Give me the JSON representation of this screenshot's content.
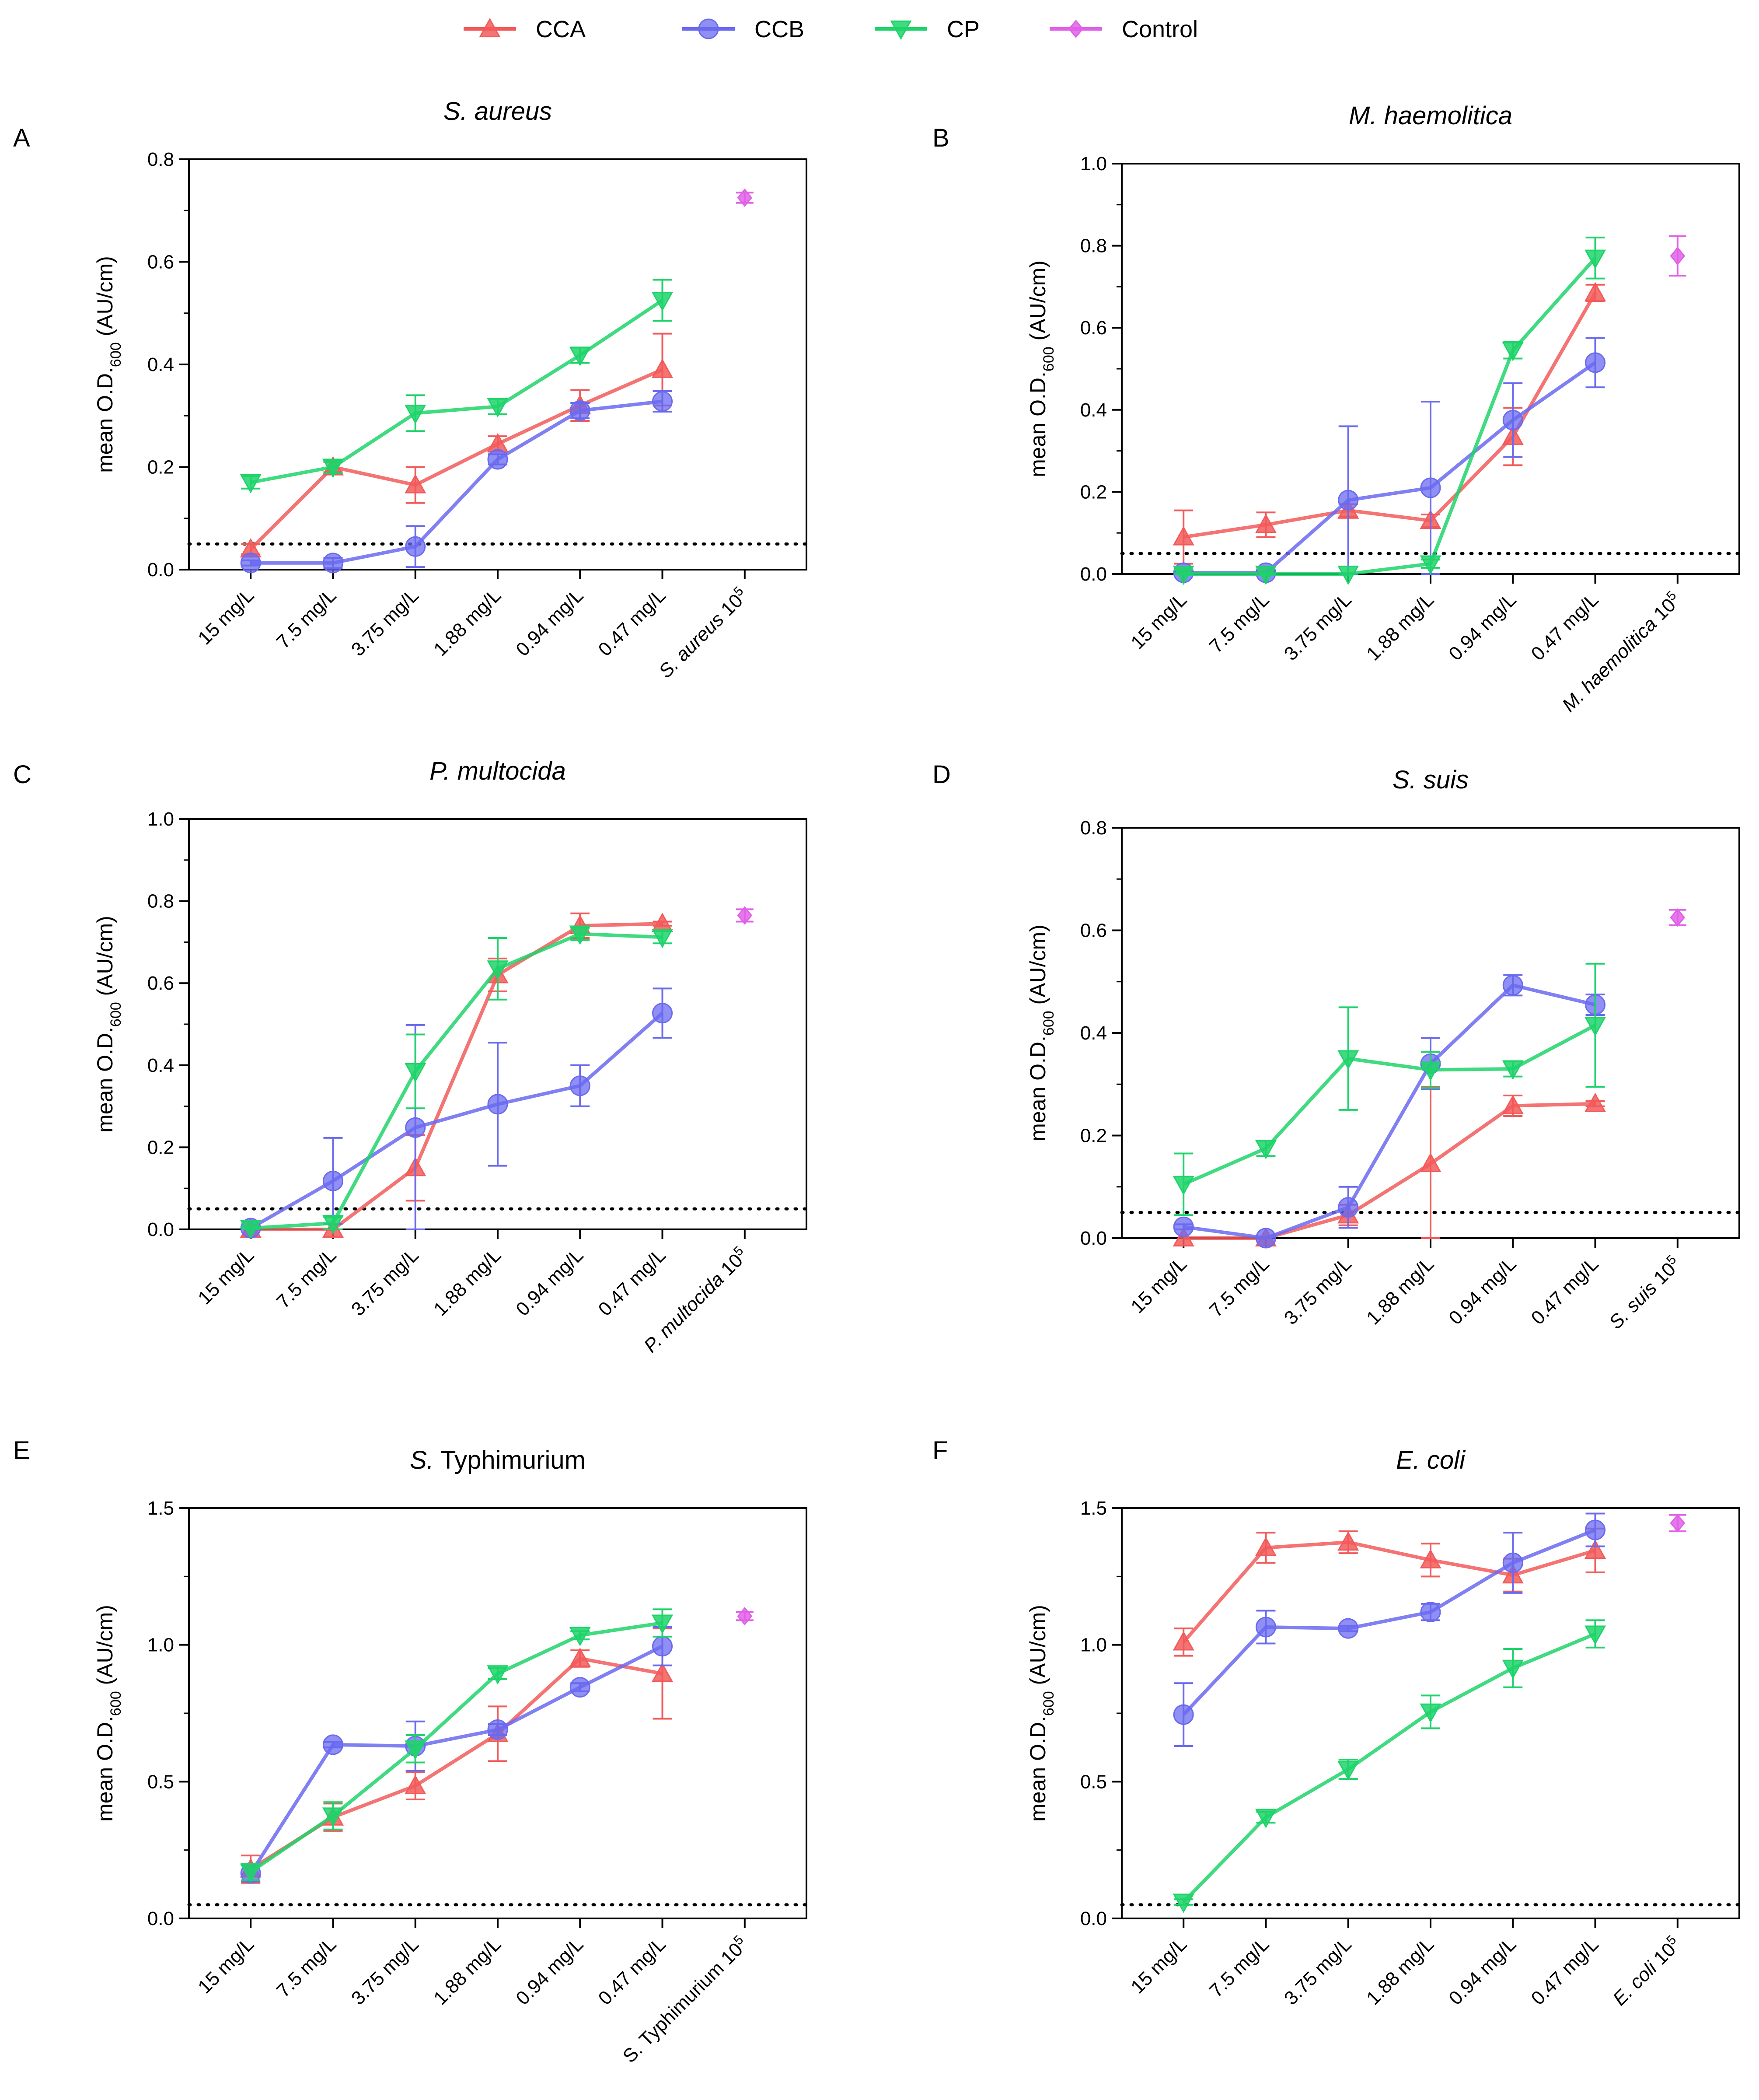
{
  "legend": {
    "placement": "top-center",
    "entries": [
      {
        "name": "CCA",
        "color": "#f25a5a",
        "marker": "triangle-up"
      },
      {
        "name": "CCB",
        "color": "#6a6af0",
        "marker": "circle"
      },
      {
        "name": "CP",
        "color": "#1ed36a",
        "marker": "triangle-down"
      },
      {
        "name": "Control",
        "color": "#e060e8",
        "marker": "diamond"
      }
    ]
  },
  "colors": {
    "CCA": "#f25a5a",
    "CCB": "#6a6af0",
    "CP": "#1ed36a",
    "Control": "#e060e8",
    "axis": "#000000"
  },
  "chart_data": [
    {
      "panel": "A",
      "title": "S. aureus",
      "type": "line",
      "ylabel": "mean O.D.600 (AU/cm)",
      "ylim": [
        0,
        0.8
      ],
      "yticks": [
        "0.0",
        "0.2",
        "0.4",
        "0.6",
        "0.8"
      ],
      "yticks_values": [
        0,
        0.2,
        0.4,
        0.6,
        0.8
      ],
      "threshold": 0.05,
      "categories": [
        "15 mg/L",
        "7.5 mg/L",
        "3.75 mg/L",
        "1.88 mg/L",
        "0.94 mg/L",
        "0.47 mg/L"
      ],
      "control_label": {
        "italic": "S. aureus",
        "plain": " 10",
        "sup": "5"
      },
      "series": [
        {
          "name": "CCA",
          "values": [
            0.04,
            0.2,
            0.165,
            0.245,
            0.32,
            0.39
          ],
          "errors": [
            0.01,
            0.01,
            0.035,
            0.015,
            0.03,
            0.07
          ]
        },
        {
          "name": "CCB",
          "values": [
            0.013,
            0.013,
            0.045,
            0.215,
            0.31,
            0.328
          ],
          "errors": [
            0.005,
            0.01,
            0.04,
            0.01,
            0.015,
            0.02
          ]
        },
        {
          "name": "CP",
          "values": [
            0.17,
            0.2,
            0.305,
            0.318,
            0.418,
            0.525
          ],
          "errors": [
            0.012,
            0.012,
            0.035,
            0.015,
            0.015,
            0.04
          ]
        }
      ],
      "control": {
        "value": 0.725,
        "error": 0.01
      }
    },
    {
      "panel": "B",
      "title": "M. haemolitica",
      "type": "line",
      "ylabel": "mean O.D.600 (AU/cm)",
      "ylim": [
        0,
        1.0
      ],
      "yticks": [
        "0.0",
        "0.2",
        "0.4",
        "0.6",
        "0.8",
        "1.0"
      ],
      "yticks_values": [
        0,
        0.2,
        0.4,
        0.6,
        0.8,
        1.0
      ],
      "threshold": 0.05,
      "categories": [
        "15 mg/L",
        "7.5 mg/L",
        "3.75 mg/L",
        "1.88 mg/L",
        "0.94 mg/L",
        "0.47 mg/L"
      ],
      "control_label": {
        "italic": "M. haemolitica",
        "plain": " 10",
        "sup": "5"
      },
      "series": [
        {
          "name": "CCA",
          "values": [
            0.09,
            0.12,
            0.155,
            0.13,
            0.335,
            0.685
          ],
          "errors": [
            0.065,
            0.03,
            0.015,
            0.015,
            0.07,
            0.02
          ]
        },
        {
          "name": "CCB",
          "values": [
            0.003,
            0.003,
            0.18,
            0.21,
            0.375,
            0.515
          ],
          "errors": [
            0.003,
            0.003,
            0.18,
            0.21,
            0.09,
            0.06
          ]
        },
        {
          "name": "CP",
          "values": [
            0.0,
            0.0,
            0.0,
            0.025,
            0.545,
            0.77
          ],
          "errors": [
            0.01,
            0.0,
            0.0,
            0.01,
            0.02,
            0.05
          ]
        }
      ],
      "control": {
        "value": 0.775,
        "error": 0.048
      }
    },
    {
      "panel": "C",
      "title": "P. multocida",
      "type": "line",
      "ylabel": "mean O.D.600 (AU/cm)",
      "ylim": [
        0,
        1.0
      ],
      "yticks": [
        "0.0",
        "0.2",
        "0.4",
        "0.6",
        "0.8",
        "1.0"
      ],
      "yticks_values": [
        0,
        0.2,
        0.4,
        0.6,
        0.8,
        1.0
      ],
      "threshold": 0.05,
      "categories": [
        "15 mg/L",
        "7.5 mg/L",
        "3.75 mg/L",
        "1.88 mg/L",
        "0.94 mg/L",
        "0.47 mg/L"
      ],
      "control_label": {
        "italic": "P. multocida",
        "plain": " 10",
        "sup": "5"
      },
      "series": [
        {
          "name": "CCA",
          "values": [
            0.0,
            0.0,
            0.15,
            0.62,
            0.74,
            0.745
          ],
          "errors": [
            0.0,
            0.0,
            0.08,
            0.04,
            0.03,
            0.005
          ]
        },
        {
          "name": "CCB",
          "values": [
            0.003,
            0.118,
            0.248,
            0.305,
            0.35,
            0.527
          ],
          "errors": [
            0.003,
            0.105,
            0.25,
            0.15,
            0.05,
            0.06
          ]
        },
        {
          "name": "CP",
          "values": [
            0.003,
            0.015,
            0.385,
            0.635,
            0.72,
            0.712
          ],
          "errors": [
            0.003,
            0.015,
            0.09,
            0.075,
            0.015,
            0.015
          ]
        }
      ],
      "control": {
        "value": 0.765,
        "error": 0.015
      }
    },
    {
      "panel": "D",
      "title": "S. suis",
      "type": "line",
      "ylabel": "mean O.D.600 (AU/cm)",
      "ylim": [
        0,
        0.8
      ],
      "yticks": [
        "0.0",
        "0.2",
        "0.4",
        "0.6",
        "0.8"
      ],
      "yticks_values": [
        0,
        0.2,
        0.4,
        0.6,
        0.8
      ],
      "threshold": 0.05,
      "categories": [
        "15 mg/L",
        "7.5 mg/L",
        "3.75 mg/L",
        "1.88 mg/L",
        "0.94 mg/L",
        "0.47 mg/L"
      ],
      "control_label": {
        "italic": "S. suis",
        "plain": " 10",
        "sup": "5"
      },
      "series": [
        {
          "name": "CCA",
          "values": [
            0.0,
            0.0,
            0.045,
            0.145,
            0.258,
            0.262
          ],
          "errors": [
            0.0,
            0.0,
            0.02,
            0.15,
            0.02,
            0.005
          ]
        },
        {
          "name": "CCB",
          "values": [
            0.022,
            0.0,
            0.06,
            0.34,
            0.493,
            0.455
          ],
          "errors": [
            0.005,
            0.0,
            0.04,
            0.05,
            0.02,
            0.02
          ]
        },
        {
          "name": "CP",
          "values": [
            0.105,
            0.175,
            0.35,
            0.328,
            0.33,
            0.415
          ],
          "errors": [
            0.06,
            0.015,
            0.1,
            0.035,
            0.015,
            0.12
          ]
        }
      ],
      "control": {
        "value": 0.625,
        "error": 0.015
      }
    },
    {
      "panel": "E",
      "title": "S. Typhimurium",
      "title_italic": "S.",
      "title_plain": " Typhimurium",
      "type": "line",
      "ylabel": "mean O.D.600 (AU/cm)",
      "ylim": [
        0,
        1.5
      ],
      "yticks": [
        "0.0",
        "0.5",
        "1.0",
        "1.5"
      ],
      "yticks_values": [
        0,
        0.5,
        1.0,
        1.5
      ],
      "threshold": 0.05,
      "categories": [
        "15 mg/L",
        "7.5 mg/L",
        "3.75 mg/L",
        "1.88 mg/L",
        "0.94 mg/L",
        "0.47 mg/L"
      ],
      "control_label": {
        "italic": "",
        "plain": "S. Typhimurium 10",
        "sup": "5"
      },
      "series": [
        {
          "name": "CCA",
          "values": [
            0.18,
            0.37,
            0.485,
            0.675,
            0.95,
            0.895
          ],
          "errors": [
            0.05,
            0.05,
            0.05,
            0.1,
            0.03,
            0.165
          ]
        },
        {
          "name": "CCB",
          "values": [
            0.165,
            0.635,
            0.63,
            0.69,
            0.845,
            0.995
          ],
          "errors": [
            0.03,
            0.01,
            0.09,
            0.02,
            0.015,
            0.07
          ]
        },
        {
          "name": "CP",
          "values": [
            0.17,
            0.375,
            0.62,
            0.895,
            1.035,
            1.08
          ],
          "errors": [
            0.03,
            0.05,
            0.05,
            0.02,
            0.015,
            0.05
          ]
        }
      ],
      "control": {
        "value": 1.105,
        "error": 0.015
      }
    },
    {
      "panel": "F",
      "title": "E. coli",
      "type": "line",
      "ylabel": "mean O.D.600 (AU/cm)",
      "ylim": [
        0,
        1.5
      ],
      "yticks": [
        "0.0",
        "0.5",
        "1.0",
        "1.5"
      ],
      "yticks_values": [
        0,
        0.5,
        1.0,
        1.5
      ],
      "threshold": 0.05,
      "categories": [
        "15 mg/L",
        "7.5 mg/L",
        "3.75 mg/L",
        "1.88 mg/L",
        "0.94 mg/L",
        "0.47 mg/L"
      ],
      "control_label": {
        "italic": "E. coli",
        "plain": " 10",
        "sup": "5"
      },
      "series": [
        {
          "name": "CCA",
          "values": [
            1.01,
            1.355,
            1.375,
            1.31,
            1.255,
            1.345
          ],
          "errors": [
            0.05,
            0.055,
            0.04,
            0.06,
            0.06,
            0.08
          ]
        },
        {
          "name": "CCB",
          "values": [
            0.745,
            1.065,
            1.06,
            1.12,
            1.3,
            1.42
          ],
          "errors": [
            0.115,
            0.06,
            0.01,
            0.03,
            0.11,
            0.06
          ]
        },
        {
          "name": "CP",
          "values": [
            0.06,
            0.37,
            0.545,
            0.755,
            0.915,
            1.04
          ],
          "errors": [
            0.01,
            0.02,
            0.035,
            0.06,
            0.07,
            0.05
          ]
        }
      ],
      "control": {
        "value": 1.445,
        "error": 0.03
      }
    }
  ]
}
